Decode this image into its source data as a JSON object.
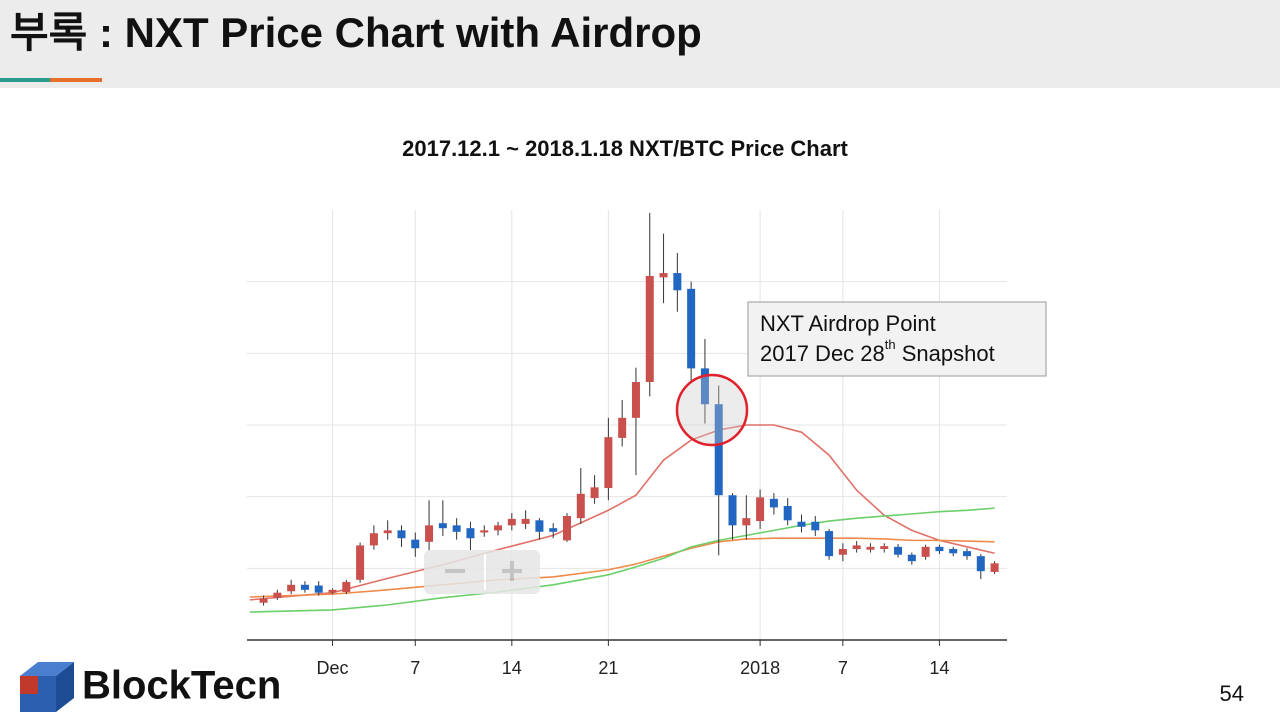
{
  "header": {
    "title": "부록 : NXT Price Chart with Airdrop"
  },
  "chart_data": {
    "type": "candlestick",
    "title": "2017.12.1 ~ 2018.1.18 NXT/BTC Price Chart",
    "up_color": "#c9504c",
    "down_color": "#2166c0",
    "x": [
      -5,
      -4,
      -3,
      -2,
      -1,
      0,
      1,
      2,
      3,
      4,
      5,
      6,
      7,
      8,
      9,
      10,
      11,
      12,
      13,
      14,
      15,
      16,
      17,
      18,
      19,
      20,
      21,
      22,
      23,
      24,
      25,
      26,
      27,
      28,
      29,
      30,
      31,
      32,
      33,
      34,
      35,
      36,
      37,
      38,
      39,
      40,
      41,
      42,
      43,
      44,
      45,
      46,
      47,
      48
    ],
    "open": [
      0.52,
      0.59,
      0.68,
      0.77,
      0.76,
      0.66,
      0.67,
      0.84,
      1.32,
      1.49,
      1.53,
      1.4,
      1.37,
      1.63,
      1.6,
      1.56,
      1.5,
      1.53,
      1.6,
      1.62,
      1.67,
      1.56,
      1.39,
      1.7,
      1.98,
      2.12,
      2.82,
      3.1,
      3.6,
      5.06,
      5.12,
      4.9,
      3.79,
      3.29,
      2.02,
      1.6,
      1.66,
      1.97,
      1.87,
      1.65,
      1.65,
      1.52,
      1.19,
      1.27,
      1.26,
      1.27,
      1.3,
      1.19,
      1.16,
      1.3,
      1.27,
      1.24,
      1.17,
      0.95
    ],
    "high": [
      0.62,
      0.7,
      0.84,
      0.82,
      0.82,
      0.72,
      0.84,
      1.36,
      1.6,
      1.67,
      1.6,
      1.5,
      1.95,
      1.95,
      1.7,
      1.65,
      1.6,
      1.65,
      1.77,
      1.81,
      1.7,
      1.63,
      1.77,
      2.4,
      2.3,
      3.1,
      3.35,
      3.8,
      5.96,
      5.67,
      5.4,
      5.0,
      4.2,
      3.55,
      2.05,
      2.02,
      2.1,
      2.05,
      1.98,
      1.75,
      1.73,
      1.55,
      1.35,
      1.38,
      1.35,
      1.35,
      1.34,
      1.22,
      1.33,
      1.33,
      1.3,
      1.28,
      1.2,
      1.1
    ],
    "low": [
      0.48,
      0.56,
      0.64,
      0.66,
      0.62,
      0.64,
      0.64,
      0.8,
      1.26,
      1.4,
      1.3,
      1.16,
      1.25,
      1.45,
      1.4,
      1.25,
      1.44,
      1.46,
      1.53,
      1.55,
      1.4,
      1.42,
      1.37,
      1.62,
      1.9,
      1.95,
      2.7,
      2.3,
      3.4,
      4.7,
      4.58,
      3.6,
      3.02,
      1.18,
      1.4,
      1.4,
      1.55,
      1.75,
      1.6,
      1.5,
      1.45,
      1.12,
      1.1,
      1.22,
      1.22,
      1.22,
      1.15,
      1.05,
      1.12,
      1.2,
      1.17,
      1.12,
      0.85,
      0.92
    ],
    "close": [
      0.58,
      0.66,
      0.77,
      0.7,
      0.66,
      0.7,
      0.81,
      1.32,
      1.49,
      1.53,
      1.42,
      1.28,
      1.6,
      1.56,
      1.51,
      1.42,
      1.53,
      1.6,
      1.69,
      1.69,
      1.51,
      1.51,
      1.73,
      2.04,
      2.13,
      2.83,
      3.1,
      3.6,
      5.08,
      5.12,
      4.88,
      3.79,
      3.29,
      2.02,
      1.6,
      1.7,
      1.99,
      1.85,
      1.67,
      1.58,
      1.53,
      1.17,
      1.27,
      1.32,
      1.3,
      1.31,
      1.19,
      1.1,
      1.3,
      1.24,
      1.21,
      1.17,
      0.96,
      1.07
    ],
    "lines": {
      "x": [
        -6,
        0,
        4,
        8,
        12,
        16,
        20,
        22,
        24,
        26,
        28,
        30,
        32,
        34,
        36,
        38,
        40,
        42,
        44,
        46,
        48
      ],
      "series": [
        {
          "color": "#e07068",
          "values": [
            0.56,
            0.66,
            0.86,
            1.05,
            1.26,
            1.46,
            1.81,
            2.02,
            2.51,
            2.79,
            2.93,
            3.0,
            3.0,
            2.9,
            2.58,
            2.09,
            1.74,
            1.53,
            1.39,
            1.3,
            1.21
          ]
        },
        {
          "color": "#f08a4b",
          "values": [
            0.6,
            0.64,
            0.7,
            0.77,
            0.84,
            0.88,
            0.98,
            1.06,
            1.17,
            1.28,
            1.37,
            1.41,
            1.42,
            1.42,
            1.42,
            1.42,
            1.41,
            1.39,
            1.39,
            1.38,
            1.37
          ]
        },
        {
          "color": "#6ccf6a",
          "values": [
            0.39,
            0.42,
            0.49,
            0.59,
            0.67,
            0.77,
            0.91,
            1.02,
            1.14,
            1.3,
            1.39,
            1.46,
            1.53,
            1.6,
            1.66,
            1.7,
            1.73,
            1.76,
            1.79,
            1.81,
            1.84
          ]
        }
      ]
    },
    "xlim": [
      -6.2,
      48.9
    ],
    "xticks": [
      {
        "value": 0,
        "label": "Dec"
      },
      {
        "value": 6,
        "label": "7"
      },
      {
        "value": 13,
        "label": "14"
      },
      {
        "value": 20,
        "label": "21"
      },
      {
        "value": 31,
        "label": "2018"
      },
      {
        "value": 37,
        "label": "7"
      },
      {
        "value": 44,
        "label": "14"
      }
    ],
    "ylim": [
      0,
      6
    ],
    "yticks": [
      1,
      2,
      3,
      4,
      5
    ],
    "grid": true,
    "annotation": {
      "line1": "NXT Airdrop Point",
      "line2_a": "2017 Dec 28",
      "line2_sup": "th",
      "line2_b": " Snapshot"
    }
  },
  "footer": {
    "logo": "BlockTecn",
    "page": "54"
  }
}
